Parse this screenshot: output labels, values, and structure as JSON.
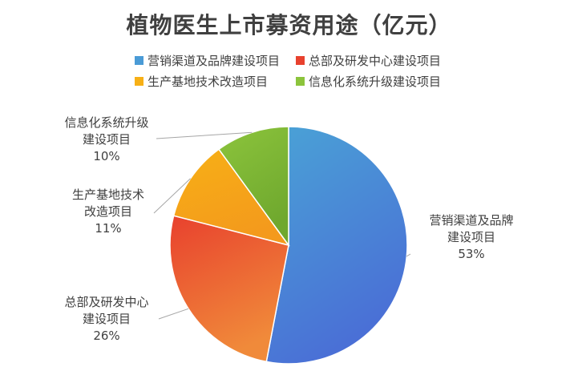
{
  "chart_data": {
    "type": "pie",
    "title": "植物医生上市募资用途（亿元）",
    "legend_position": "top",
    "slices": [
      {
        "name": "营销渠道及品牌建设项目",
        "label_lines": [
          "营销渠道及品牌",
          "建设项目"
        ],
        "percent_label": "53%",
        "value": 53,
        "color": "#4AA3D6",
        "color_end": "#4A6FD6"
      },
      {
        "name": "总部及研发中心建设项目",
        "label_lines": [
          "总部及研发中心",
          "建设项目"
        ],
        "percent_label": "26%",
        "value": 26,
        "color": "#E8412E",
        "color_end": "#F08A3A"
      },
      {
        "name": "生产基地技术改造项目",
        "label_lines": [
          "生产基地技术",
          "改造项目"
        ],
        "percent_label": "11%",
        "value": 11,
        "color": "#F7B016",
        "color_end": "#F49A1C"
      },
      {
        "name": "信息化系统升级建设项目",
        "label_lines": [
          "信息化系统升级",
          "建设项目"
        ],
        "percent_label": "10%",
        "value": 10,
        "color": "#8CC43C",
        "color_end": "#6FA82E"
      }
    ]
  }
}
